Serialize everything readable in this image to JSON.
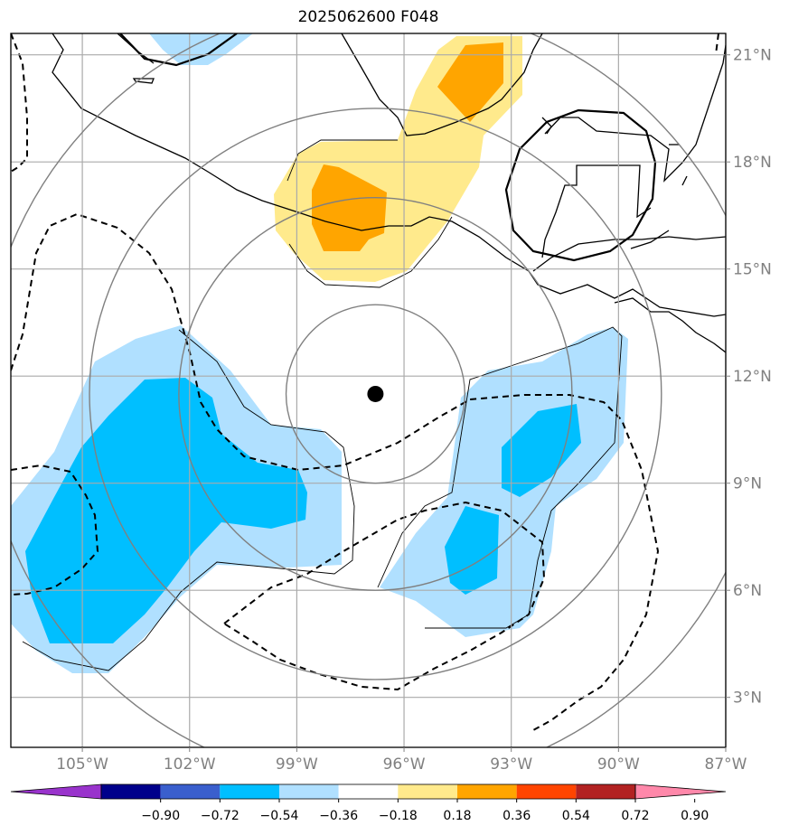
{
  "map": {
    "title": "2025062600 F048",
    "lon_range": [
      -107,
      -87.0
    ],
    "lat_range": [
      1.6,
      21.6
    ],
    "lon_ticks": [
      {
        "lon": -105,
        "label": "105°W"
      },
      {
        "lon": -102,
        "label": "102°W"
      },
      {
        "lon": -99,
        "label": "99°W"
      },
      {
        "lon": -96,
        "label": "96°W"
      },
      {
        "lon": -93,
        "label": "93°W"
      },
      {
        "lon": -90,
        "label": "90°W"
      },
      {
        "lon": -87,
        "label": "87°W"
      }
    ],
    "lat_ticks": [
      {
        "lat": 3,
        "label": "3°N"
      },
      {
        "lat": 6,
        "label": "6°N"
      },
      {
        "lat": 9,
        "label": "9°N"
      },
      {
        "lat": 12,
        "label": "12°N"
      },
      {
        "lat": 15,
        "label": "15°N"
      },
      {
        "lat": 18,
        "label": "18°N"
      },
      {
        "lat": 21,
        "label": "21°N"
      }
    ],
    "center_marker": {
      "lon": -96.8,
      "lat": 11.5
    },
    "range_rings_deg": [
      2.5,
      5.5,
      8.0,
      11.0
    ],
    "grid_color": "#aaaaaa",
    "ring_color": "#808080",
    "coast_color": "#000000"
  },
  "colorbar": {
    "levels": [
      -0.9,
      -0.72,
      -0.54,
      -0.36,
      -0.18,
      0.18,
      0.36,
      0.54,
      0.72,
      0.9
    ],
    "labels": [
      "−0.90",
      "−0.72",
      "−0.54",
      "−0.36",
      "−0.18",
      "0.18",
      "0.36",
      "0.54",
      "0.72",
      "0.90"
    ],
    "colors": [
      "#9933cc",
      "#00008b",
      "#3a5fcd",
      "#00bfff",
      "#b0e0ff",
      "#ffffff",
      "#ffea8c",
      "#ffa500",
      "#ff4500",
      "#b22222",
      "#ff88aa"
    ]
  }
}
